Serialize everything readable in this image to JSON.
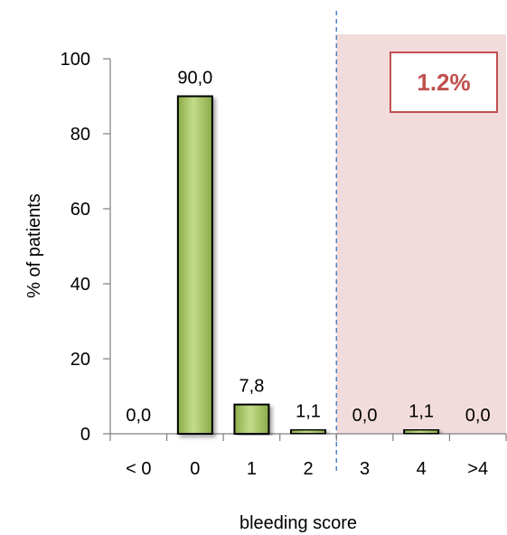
{
  "chart_data": {
    "type": "bar",
    "categories": [
      "< 0",
      "0",
      "1",
      "2",
      "3",
      "4",
      ">4"
    ],
    "values": [
      0.0,
      90.0,
      7.8,
      1.1,
      0.0,
      1.1,
      0.0
    ],
    "data_labels": [
      "0,0",
      "90,0",
      "7,8",
      "1,1",
      "0,0",
      "1,1",
      "0,0"
    ],
    "xlabel": "bleeding score",
    "ylabel": "% of patients",
    "ylim": [
      0,
      100
    ],
    "yticks": [
      0,
      20,
      40,
      60,
      80,
      100
    ],
    "grid": false,
    "legend": "none",
    "highlight_region": {
      "from_category": "3",
      "to_category": ">4",
      "label": "1.2%",
      "label_position": "top-right"
    },
    "colors": {
      "bar_fill": "#9bbb59",
      "bar_fill_light": "#c4dc8a",
      "bar_stroke": "#000000",
      "highlight_fill": "#f2dcdb",
      "callout_border": "#c0504d",
      "callout_text": "#c0504d",
      "divider": "#4f81bd"
    }
  }
}
